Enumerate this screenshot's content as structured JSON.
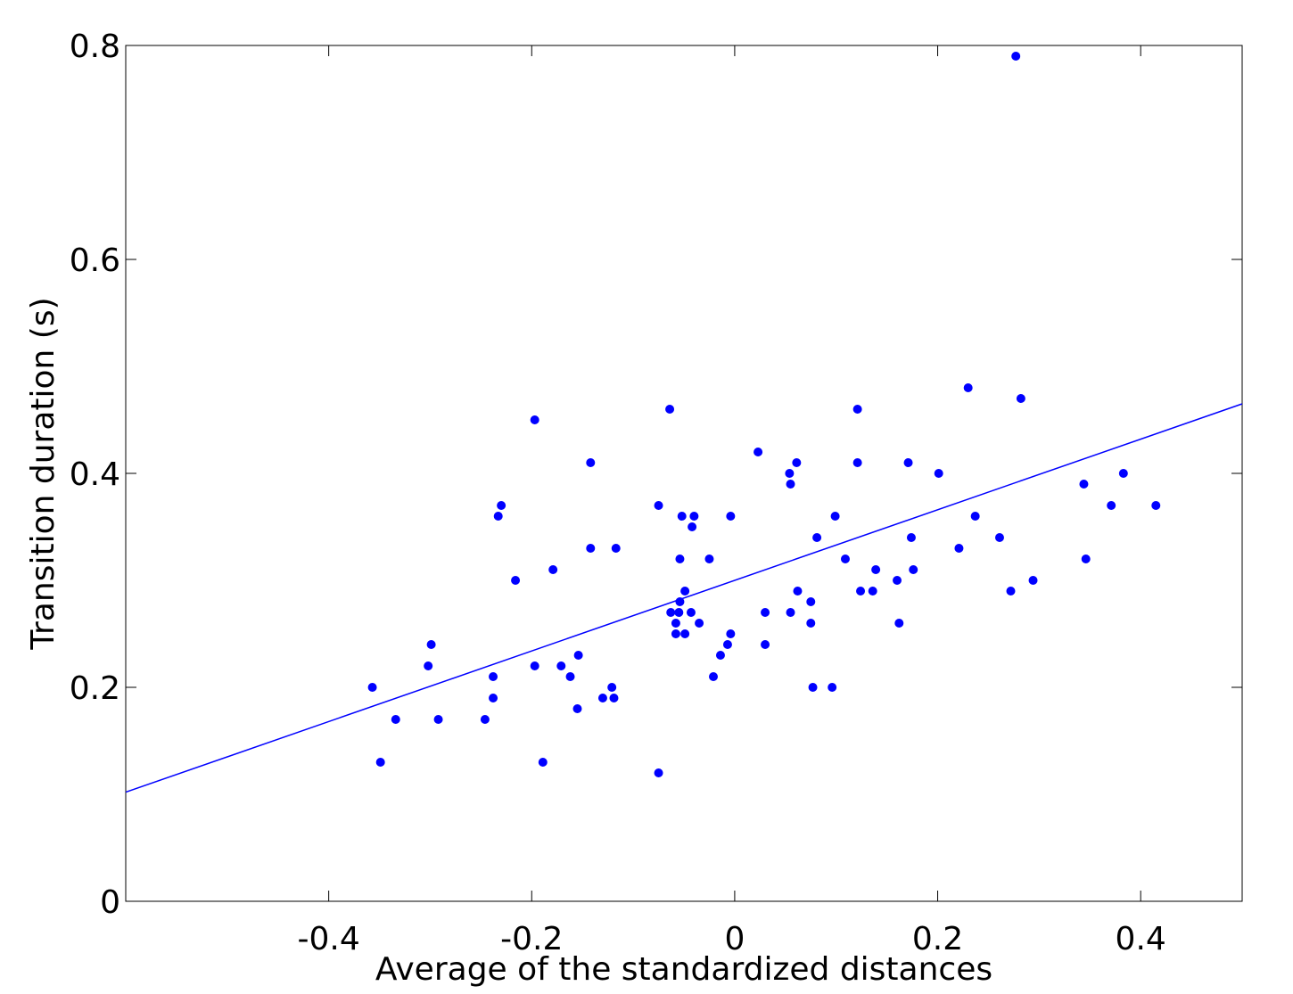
{
  "chart_data": {
    "type": "scatter",
    "xlabel": "Average of the standardized distances",
    "ylabel": "Transition duration (s)",
    "xlim": [
      -0.6,
      0.5
    ],
    "ylim": [
      0,
      0.8
    ],
    "x_ticks": [
      -0.4,
      -0.2,
      0,
      0.2,
      0.4
    ],
    "x_tick_labels": [
      "-0.4",
      "-0.2",
      "0",
      "0.2",
      "0.4"
    ],
    "y_ticks": [
      0,
      0.2,
      0.4,
      0.6,
      0.8
    ],
    "y_tick_labels": [
      "0",
      "0.2",
      "0.4",
      "0.6",
      "0.8"
    ],
    "grid": false,
    "point_color": "#0000ff",
    "line_color": "#0000ff",
    "series": [
      {
        "points": [
          [
            -0.357,
            0.2
          ],
          [
            -0.349,
            0.13
          ],
          [
            -0.334,
            0.17
          ],
          [
            -0.302,
            0.22
          ],
          [
            -0.299,
            0.24
          ],
          [
            -0.292,
            0.17
          ],
          [
            -0.246,
            0.17
          ],
          [
            -0.238,
            0.21
          ],
          [
            -0.238,
            0.19
          ],
          [
            -0.233,
            0.36
          ],
          [
            -0.23,
            0.37
          ],
          [
            -0.216,
            0.3
          ],
          [
            -0.197,
            0.22
          ],
          [
            -0.197,
            0.45
          ],
          [
            -0.189,
            0.13
          ],
          [
            -0.179,
            0.31
          ],
          [
            -0.171,
            0.22
          ],
          [
            -0.162,
            0.21
          ],
          [
            -0.155,
            0.18
          ],
          [
            -0.154,
            0.23
          ],
          [
            -0.142,
            0.41
          ],
          [
            -0.142,
            0.33
          ],
          [
            -0.13,
            0.19
          ],
          [
            -0.121,
            0.2
          ],
          [
            -0.119,
            0.19
          ],
          [
            -0.117,
            0.33
          ],
          [
            -0.075,
            0.12
          ],
          [
            -0.075,
            0.37
          ],
          [
            -0.064,
            0.46
          ],
          [
            -0.063,
            0.27
          ],
          [
            -0.058,
            0.26
          ],
          [
            -0.058,
            0.25
          ],
          [
            -0.055,
            0.27
          ],
          [
            -0.054,
            0.28
          ],
          [
            -0.054,
            0.32
          ],
          [
            -0.052,
            0.36
          ],
          [
            -0.049,
            0.29
          ],
          [
            -0.049,
            0.25
          ],
          [
            -0.043,
            0.27
          ],
          [
            -0.042,
            0.35
          ],
          [
            -0.04,
            0.36
          ],
          [
            -0.035,
            0.26
          ],
          [
            -0.025,
            0.32
          ],
          [
            -0.021,
            0.21
          ],
          [
            -0.014,
            0.23
          ],
          [
            -0.007,
            0.24
          ],
          [
            -0.004,
            0.25
          ],
          [
            -0.004,
            0.36
          ],
          [
            0.023,
            0.42
          ],
          [
            0.03,
            0.27
          ],
          [
            0.03,
            0.24
          ],
          [
            0.054,
            0.4
          ],
          [
            0.055,
            0.39
          ],
          [
            0.055,
            0.27
          ],
          [
            0.061,
            0.41
          ],
          [
            0.062,
            0.29
          ],
          [
            0.075,
            0.28
          ],
          [
            0.075,
            0.26
          ],
          [
            0.077,
            0.2
          ],
          [
            0.081,
            0.34
          ],
          [
            0.096,
            0.2
          ],
          [
            0.099,
            0.36
          ],
          [
            0.109,
            0.32
          ],
          [
            0.121,
            0.46
          ],
          [
            0.121,
            0.41
          ],
          [
            0.124,
            0.29
          ],
          [
            0.136,
            0.29
          ],
          [
            0.139,
            0.31
          ],
          [
            0.16,
            0.3
          ],
          [
            0.162,
            0.26
          ],
          [
            0.171,
            0.41
          ],
          [
            0.174,
            0.34
          ],
          [
            0.176,
            0.31
          ],
          [
            0.201,
            0.4
          ],
          [
            0.221,
            0.33
          ],
          [
            0.23,
            0.48
          ],
          [
            0.237,
            0.36
          ],
          [
            0.261,
            0.34
          ],
          [
            0.272,
            0.29
          ],
          [
            0.277,
            0.79
          ],
          [
            0.282,
            0.47
          ],
          [
            0.294,
            0.3
          ],
          [
            0.344,
            0.39
          ],
          [
            0.346,
            0.32
          ],
          [
            0.371,
            0.37
          ],
          [
            0.383,
            0.4
          ],
          [
            0.415,
            0.37
          ]
        ]
      }
    ],
    "fit_line": {
      "x": [
        -0.6,
        0.5
      ],
      "y": [
        0.102,
        0.465
      ]
    }
  }
}
